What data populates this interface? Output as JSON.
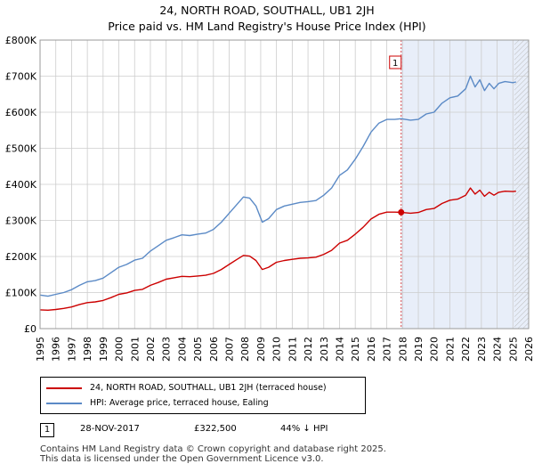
{
  "header": {
    "line1": "24, NORTH ROAD, SOUTHALL, UB1 2JH",
    "line2": "Price paid vs. HM Land Registry's House Price Index (HPI)"
  },
  "colors": {
    "property": "#cc0000",
    "hpi": "#5b8ac6",
    "shade": "#e8eef9",
    "grid": "#cccccc",
    "marker_line": "#cc0000"
  },
  "legend": {
    "property_label": "24, NORTH ROAD, SOUTHALL, UB1 2JH (terraced house)",
    "hpi_label": "HPI: Average price, terraced house, Ealing"
  },
  "annotations": [
    {
      "id": "1",
      "date": "28-NOV-2017",
      "price": "£322,500",
      "hpi_diff": "44% ↓ HPI"
    }
  ],
  "footer": {
    "line1": "Contains HM Land Registry data © Crown copyright and database right 2025.",
    "line2": "This data is licensed under the Open Government Licence v3.0."
  },
  "chart_data": {
    "type": "line",
    "title": "Price paid vs. HM Land Registry's House Price Index (HPI)",
    "xlabel": "",
    "ylabel": "",
    "xlim": [
      1995,
      2026
    ],
    "ylim": [
      0,
      800000
    ],
    "x_ticks": [
      "1995",
      "1996",
      "1997",
      "1998",
      "1999",
      "2000",
      "2001",
      "2002",
      "2003",
      "2004",
      "2005",
      "2006",
      "2007",
      "2008",
      "2009",
      "2010",
      "2011",
      "2012",
      "2013",
      "2014",
      "2015",
      "2016",
      "2017",
      "2018",
      "2019",
      "2020",
      "2021",
      "2022",
      "2023",
      "2024",
      "2025",
      "2026"
    ],
    "y_ticks": [
      {
        "value": 0,
        "label": "£0"
      },
      {
        "value": 100000,
        "label": "£100K"
      },
      {
        "value": 200000,
        "label": "£200K"
      },
      {
        "value": 300000,
        "label": "£300K"
      },
      {
        "value": 400000,
        "label": "£400K"
      },
      {
        "value": 500000,
        "label": "£500K"
      },
      {
        "value": 600000,
        "label": "£600K"
      },
      {
        "value": 700000,
        "label": "£700K"
      },
      {
        "value": 800000,
        "label": "£800K"
      }
    ],
    "grid": true,
    "shaded_from": 2017.91,
    "hatched_from": 2025.1,
    "sale_marker": {
      "label": "1",
      "x": 2017.91,
      "y": 322500
    },
    "series": [
      {
        "name": "HPI: Average price, terraced house, Ealing",
        "x": [
          1995,
          1995.5,
          1996,
          1996.5,
          1997,
          1997.5,
          1998,
          1998.5,
          1999,
          1999.5,
          2000,
          2000.5,
          2001,
          2001.5,
          2002,
          2002.5,
          2003,
          2003.5,
          2004,
          2004.5,
          2005,
          2005.5,
          2006,
          2006.5,
          2007,
          2007.5,
          2007.9,
          2008.3,
          2008.7,
          2009.1,
          2009.5,
          2010,
          2010.5,
          2011,
          2011.5,
          2012,
          2012.5,
          2013,
          2013.5,
          2014,
          2014.5,
          2015,
          2015.5,
          2016,
          2016.5,
          2017,
          2017.5,
          2017.9,
          2018.5,
          2019,
          2019.5,
          2020,
          2020.5,
          2021,
          2021.5,
          2022,
          2022.3,
          2022.6,
          2022.9,
          2023.2,
          2023.5,
          2023.8,
          2024.1,
          2024.5,
          2025,
          2025.2
        ],
        "values": [
          93000,
          90000,
          95000,
          100000,
          108000,
          120000,
          130000,
          133000,
          140000,
          155000,
          170000,
          178000,
          190000,
          195000,
          215000,
          230000,
          245000,
          252000,
          260000,
          258000,
          262000,
          265000,
          275000,
          295000,
          320000,
          345000,
          365000,
          362000,
          340000,
          295000,
          305000,
          330000,
          340000,
          345000,
          350000,
          352000,
          355000,
          370000,
          390000,
          425000,
          440000,
          470000,
          505000,
          545000,
          570000,
          580000,
          580000,
          582000,
          578000,
          580000,
          595000,
          600000,
          625000,
          640000,
          645000,
          665000,
          700000,
          670000,
          690000,
          660000,
          680000,
          665000,
          680000,
          685000,
          682000,
          684000
        ]
      },
      {
        "name": "24, NORTH ROAD, SOUTHALL, UB1 2JH (terraced house)",
        "x": [
          1995,
          1995.5,
          1996,
          1996.5,
          1997,
          1997.5,
          1998,
          1998.5,
          1999,
          1999.5,
          2000,
          2000.5,
          2001,
          2001.5,
          2002,
          2002.5,
          2003,
          2003.5,
          2004,
          2004.5,
          2005,
          2005.5,
          2006,
          2006.5,
          2007,
          2007.5,
          2007.9,
          2008.3,
          2008.7,
          2009.1,
          2009.5,
          2010,
          2010.5,
          2011,
          2011.5,
          2012,
          2012.5,
          2013,
          2013.5,
          2014,
          2014.5,
          2015,
          2015.5,
          2016,
          2016.5,
          2017,
          2017.5,
          2017.9,
          2018.5,
          2019,
          2019.5,
          2020,
          2020.5,
          2021,
          2021.5,
          2022,
          2022.3,
          2022.6,
          2022.9,
          2023.2,
          2023.5,
          2023.8,
          2024.1,
          2024.5,
          2025,
          2025.2
        ],
        "values": [
          52000,
          51000,
          53000,
          56000,
          60000,
          67000,
          72000,
          74000,
          78000,
          86000,
          95000,
          99000,
          106000,
          109000,
          120000,
          128000,
          137000,
          141000,
          145000,
          144000,
          146000,
          148000,
          153000,
          164000,
          178000,
          192000,
          203000,
          201000,
          189000,
          164000,
          170000,
          184000,
          189000,
          192000,
          195000,
          196000,
          198000,
          206000,
          217000,
          237000,
          245000,
          262000,
          281000,
          304000,
          317000,
          323000,
          323000,
          322500,
          320000,
          322000,
          330000,
          333000,
          347000,
          356000,
          359000,
          370000,
          390000,
          373000,
          384000,
          367000,
          378000,
          370000,
          378000,
          381000,
          380000,
          381000
        ]
      }
    ]
  }
}
